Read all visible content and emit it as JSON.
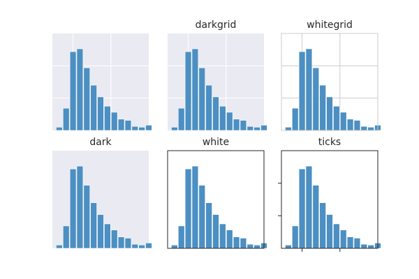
{
  "chart_data": [
    {
      "type": "bar",
      "style": "",
      "title": "",
      "face_color": "#eaeaf2",
      "spines": false,
      "grid": true,
      "grid_color": "#ffffff",
      "ticks": false,
      "bar_color": "#4c8fc2",
      "xlim": [
        0,
        14
      ],
      "ylim": [
        0,
        24
      ],
      "x_ticks": [
        3,
        8.5
      ],
      "y_ticks": [
        8,
        16
      ],
      "values": [
        0.8,
        5.5,
        19.5,
        20.2,
        15.5,
        11.2,
        8.3,
        6,
        4.5,
        2.8,
        2.5,
        1,
        0.8,
        1.3
      ]
    },
    {
      "type": "bar",
      "style": "darkgrid",
      "title": "darkgrid",
      "face_color": "#eaeaf2",
      "spines": false,
      "grid": true,
      "grid_color": "#ffffff",
      "ticks": false,
      "bar_color": "#4c8fc2",
      "xlim": [
        0,
        14
      ],
      "ylim": [
        0,
        24
      ],
      "x_ticks": [
        3,
        8.5
      ],
      "y_ticks": [
        8,
        16
      ],
      "values": [
        0.8,
        5.5,
        19.5,
        20.2,
        15.5,
        11.2,
        8.3,
        6,
        4.5,
        2.8,
        2.5,
        1,
        0.8,
        1.3
      ]
    },
    {
      "type": "bar",
      "style": "whitegrid",
      "title": "whitegrid",
      "face_color": "#ffffff",
      "spines": true,
      "spine_color": "#cccccc",
      "grid": true,
      "grid_color": "#cccccc",
      "ticks": false,
      "bar_color": "#4c8fc2",
      "xlim": [
        0,
        14
      ],
      "ylim": [
        0,
        24
      ],
      "x_ticks": [
        3,
        8.5
      ],
      "y_ticks": [
        8,
        16
      ],
      "values": [
        0.8,
        5.5,
        19.5,
        20.2,
        15.5,
        11.2,
        8.3,
        6,
        4.5,
        2.8,
        2.5,
        1,
        0.8,
        1.3
      ]
    },
    {
      "type": "bar",
      "style": "dark",
      "title": "dark",
      "face_color": "#eaeaf2",
      "spines": false,
      "grid": false,
      "ticks": false,
      "bar_color": "#4c8fc2",
      "xlim": [
        0,
        14
      ],
      "ylim": [
        0,
        24
      ],
      "x_ticks": [
        3,
        8.5
      ],
      "y_ticks": [
        8,
        16
      ],
      "values": [
        0.8,
        5.5,
        19.5,
        20.2,
        15.5,
        11.2,
        8.3,
        6,
        4.5,
        2.8,
        2.5,
        1,
        0.8,
        1.3
      ]
    },
    {
      "type": "bar",
      "style": "white",
      "title": "white",
      "face_color": "#ffffff",
      "spines": true,
      "spine_color": "#262626",
      "grid": false,
      "ticks": false,
      "bar_color": "#4c8fc2",
      "xlim": [
        0,
        14
      ],
      "ylim": [
        0,
        24
      ],
      "x_ticks": [
        3,
        8.5
      ],
      "y_ticks": [
        8,
        16
      ],
      "values": [
        0.8,
        5.5,
        19.5,
        20.2,
        15.5,
        11.2,
        8.3,
        6,
        4.5,
        2.8,
        2.5,
        1,
        0.8,
        1.3
      ]
    },
    {
      "type": "bar",
      "style": "ticks",
      "title": "ticks",
      "face_color": "#ffffff",
      "spines": true,
      "spine_color": "#262626",
      "grid": false,
      "ticks": true,
      "bar_color": "#4c8fc2",
      "xlim": [
        0,
        14
      ],
      "ylim": [
        0,
        24
      ],
      "x_ticks": [
        3,
        8.5
      ],
      "y_ticks": [
        8,
        16
      ],
      "values": [
        0.8,
        5.5,
        19.5,
        20.2,
        15.5,
        11.2,
        8.3,
        6,
        4.5,
        2.8,
        2.5,
        1,
        0.8,
        1.3
      ]
    }
  ]
}
